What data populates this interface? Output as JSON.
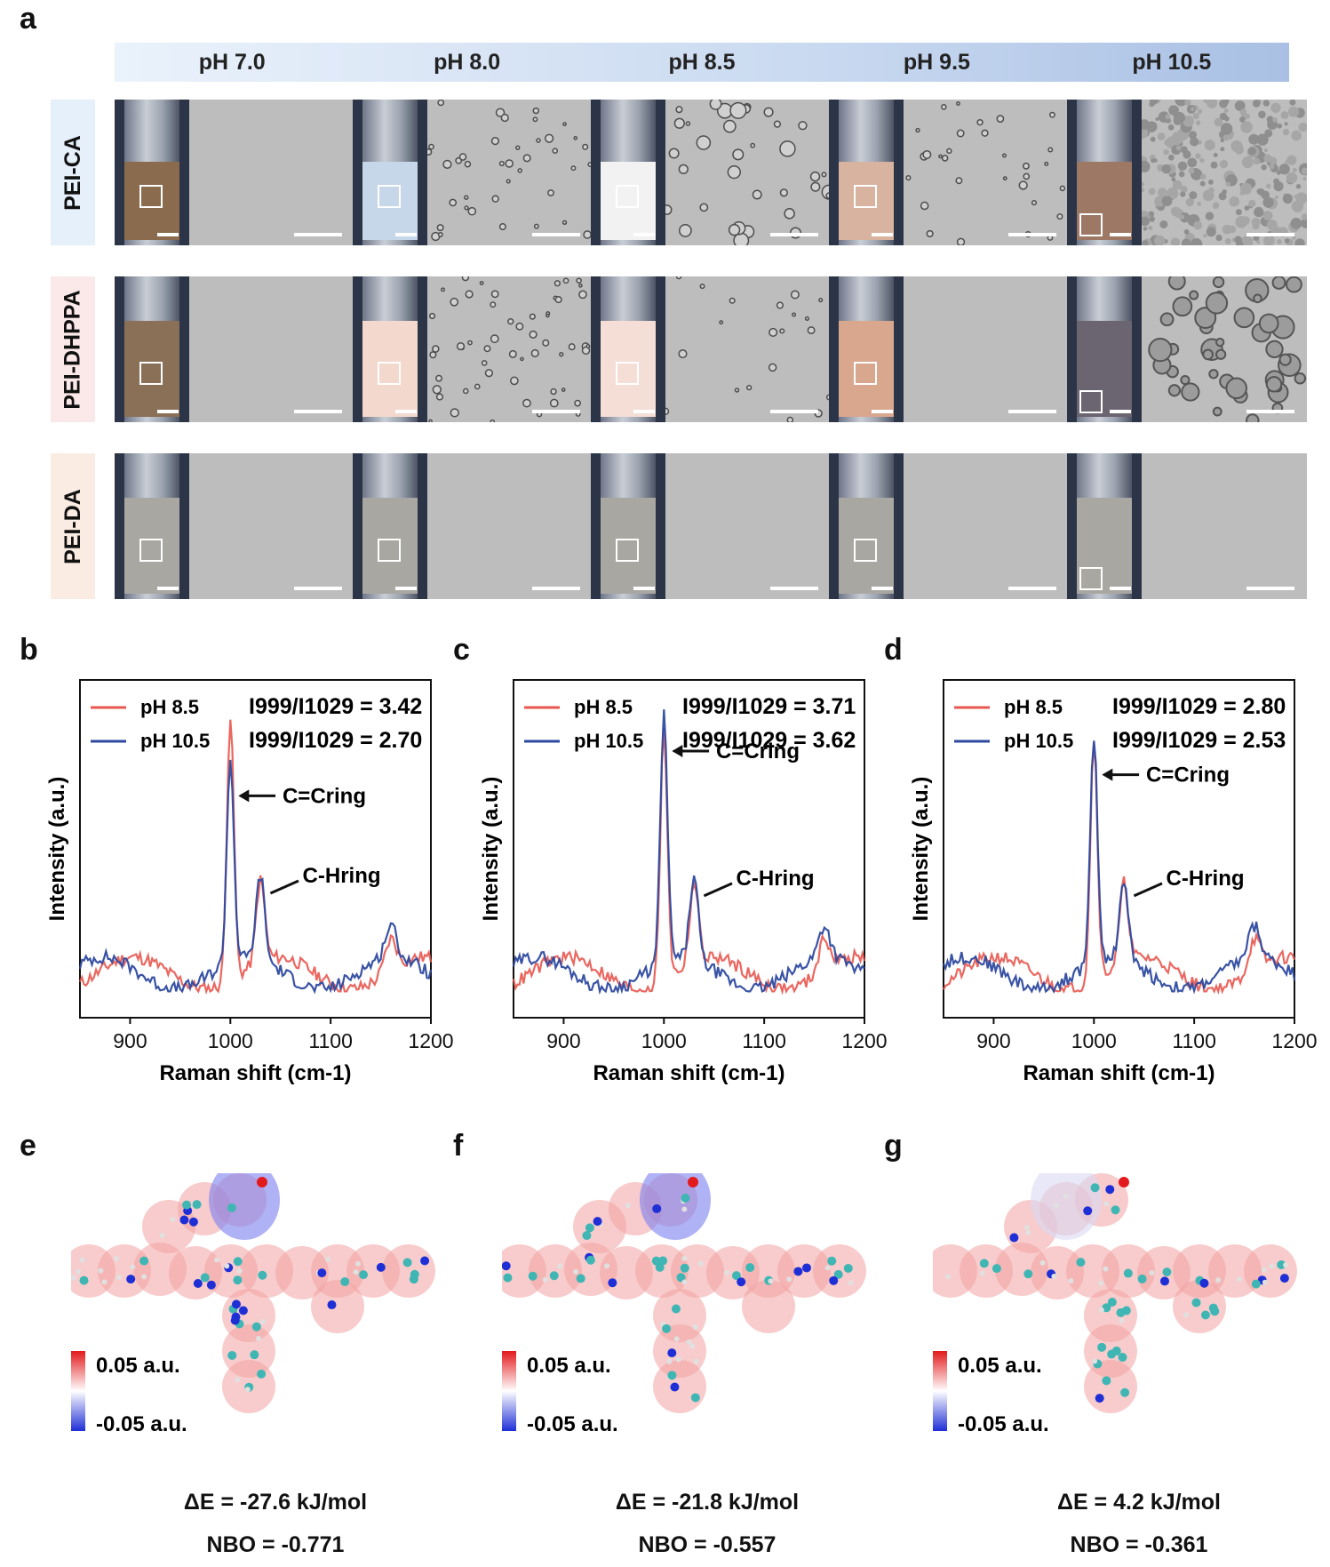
{
  "panels": {
    "a": "a",
    "b": "b",
    "c": "c",
    "d": "d",
    "e": "e",
    "f": "f",
    "g": "g"
  },
  "ph_labels": [
    "pH 7.0",
    "pH 8.0",
    "pH 8.5",
    "pH 9.5",
    "pH 10.5"
  ],
  "row_labels": [
    "PEI-CA",
    "PEI-DHPPA",
    "PEI-DA"
  ],
  "row_colors": [
    "#e6f0fa",
    "#fbe9e9",
    "#fbece3"
  ],
  "liquid_colors": [
    [
      "#8a6b4d",
      "#c7d7ea",
      "#f2f2f2",
      "#d8b3a0",
      "#9c7865"
    ],
    [
      "#8a7057",
      "#f3d9cd",
      "#f4ded6",
      "#d8a78e",
      "#6b6471"
    ],
    [
      "#a9a7a2",
      "#a9a7a2",
      "#a9a7a2",
      "#a9a7a2",
      "#a9a7a2"
    ]
  ],
  "spectra_legend": {
    "series1": "pH 8.5",
    "series2": "pH 10.5"
  },
  "chart_data": [
    {
      "type": "line",
      "panel": "b",
      "xlabel": "Raman shift (cm-1)",
      "ylabel": "Intensity (a.u.)",
      "xlim": [
        850,
        1200
      ],
      "xticks": [
        900,
        1000,
        1100,
        1200
      ],
      "ratio_label": "I999/I1029",
      "ratios": [
        "3.42",
        "2.70"
      ],
      "annotations": [
        "C=Cring",
        "C-Hring"
      ],
      "series": [
        {
          "name": "pH 8.5",
          "color": "#e8574f",
          "peak1": 1.0,
          "peak2": 0.31
        },
        {
          "name": "pH 10.5",
          "color": "#2e4aa0",
          "peak1": 0.77,
          "peak2": 0.32
        }
      ]
    },
    {
      "type": "line",
      "panel": "c",
      "xlabel": "Raman shift (cm-1)",
      "ylabel": "Intensity (a.u.)",
      "xlim": [
        850,
        1200
      ],
      "xticks": [
        900,
        1000,
        1100,
        1200
      ],
      "ratio_label": "I999/I1029",
      "ratios": [
        "3.71",
        "3.62"
      ],
      "annotations": [
        "C=Cring",
        "C-Hring"
      ],
      "series": [
        {
          "name": "pH 8.5",
          "color": "#e8574f",
          "peak1": 0.95,
          "peak2": 0.3
        },
        {
          "name": "pH 10.5",
          "color": "#2e4aa0",
          "peak1": 0.94,
          "peak2": 0.31
        }
      ]
    },
    {
      "type": "line",
      "panel": "d",
      "xlabel": "Raman shift (cm-1)",
      "ylabel": "Intensity (a.u.)",
      "xlim": [
        850,
        1200
      ],
      "xticks": [
        900,
        1000,
        1100,
        1200
      ],
      "ratio_label": "I999/I1029",
      "ratios": [
        "2.80",
        "2.53"
      ],
      "annotations": [
        "C=Cring",
        "C-Hring"
      ],
      "series": [
        {
          "name": "pH 8.5",
          "color": "#e8574f",
          "peak1": 0.92,
          "peak2": 0.3
        },
        {
          "name": "pH 10.5",
          "color": "#2e4aa0",
          "peak1": 0.85,
          "peak2": 0.3
        }
      ]
    }
  ],
  "esp_scale": {
    "max": "0.05 a.u.",
    "min": "-0.05 a.u."
  },
  "energies": [
    {
      "dE": "ΔE = -27.6 kJ/mol",
      "nbo": "NBO = -0.771"
    },
    {
      "dE": "ΔE = -21.8 kJ/mol",
      "nbo": "NBO = -0.557"
    },
    {
      "dE": "ΔE = 4.2 kJ/mol",
      "nbo": "NBO = -0.361"
    }
  ]
}
